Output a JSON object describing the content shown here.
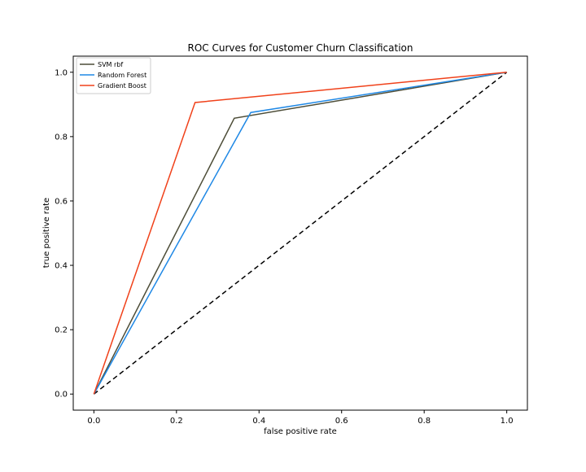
{
  "chart_data": {
    "type": "line",
    "title": "ROC Curves for Customer Churn Classification",
    "xlabel": "false positive rate",
    "ylabel": "true positive rate",
    "xlim": [
      -0.05,
      1.05
    ],
    "ylim": [
      -0.05,
      1.05
    ],
    "xticks": [
      0.0,
      0.2,
      0.4,
      0.6,
      0.8,
      1.0
    ],
    "xtick_labels": [
      "0.0",
      "0.2",
      "0.4",
      "0.6",
      "0.8",
      "1.0"
    ],
    "yticks": [
      0.0,
      0.2,
      0.4,
      0.6,
      0.8,
      1.0
    ],
    "ytick_labels": [
      "0.0",
      "0.2",
      "0.4",
      "0.6",
      "0.8",
      "1.0"
    ],
    "grid": false,
    "legend_position": "top-left",
    "series": [
      {
        "name": "SVM rbf",
        "color": "#4d4d38",
        "x": [
          0.0,
          0.34,
          1.0
        ],
        "y": [
          0.0,
          0.857,
          1.0
        ]
      },
      {
        "name": "Random Forest",
        "color": "#1f88e5",
        "x": [
          0.0,
          0.38,
          1.0
        ],
        "y": [
          0.0,
          0.875,
          1.0
        ]
      },
      {
        "name": "Gradient Boost",
        "color": "#f0411a",
        "x": [
          0.0,
          0.245,
          1.0
        ],
        "y": [
          0.0,
          0.906,
          1.0
        ]
      }
    ],
    "reference_line": {
      "color": "#000000",
      "style": "dashed",
      "x": [
        0.0,
        1.0
      ],
      "y": [
        0.0,
        1.0
      ]
    }
  }
}
